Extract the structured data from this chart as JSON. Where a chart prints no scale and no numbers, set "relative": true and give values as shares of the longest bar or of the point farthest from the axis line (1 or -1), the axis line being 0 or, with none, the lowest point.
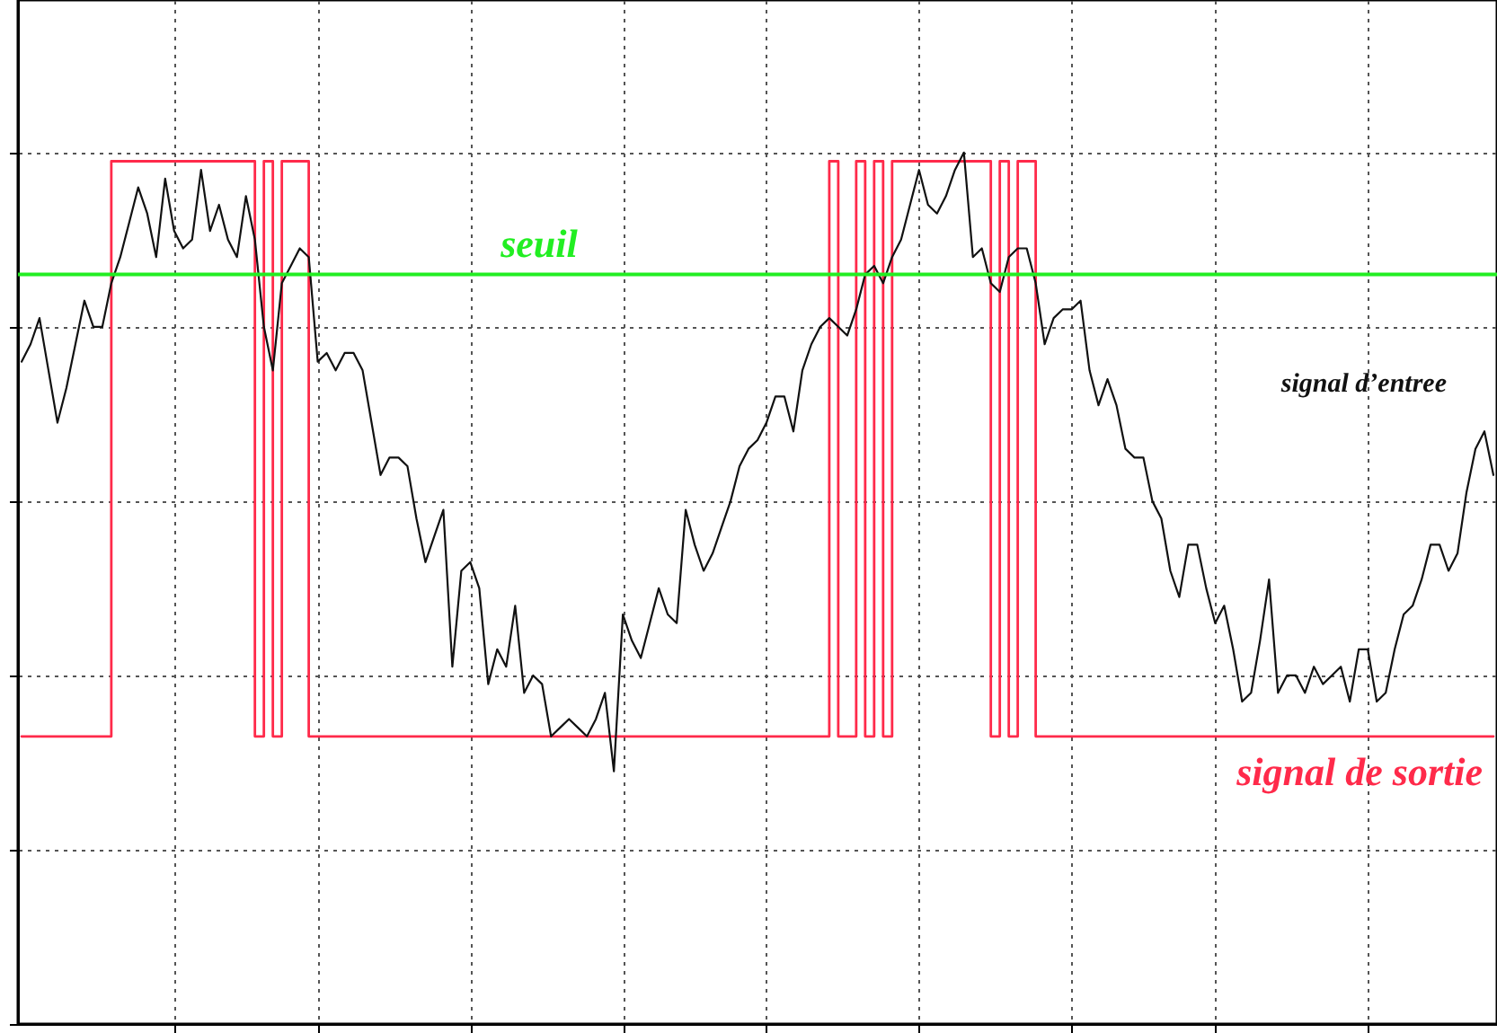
{
  "chart_data": {
    "type": "line",
    "relative": true,
    "grid": true,
    "categories": [
      null,
      null,
      null,
      null,
      null,
      null,
      null,
      null,
      null,
      null,
      null,
      null,
      null,
      null,
      null,
      null,
      null,
      null,
      null,
      null,
      null,
      null,
      null,
      null,
      null,
      null,
      null,
      null,
      null,
      null,
      null,
      null,
      null,
      null,
      null,
      null,
      null,
      null,
      null,
      null,
      null,
      null,
      null,
      null,
      null,
      null,
      null,
      null,
      null,
      null,
      null,
      null,
      null,
      null,
      null,
      null,
      null,
      null,
      null,
      null,
      null,
      null,
      null,
      null,
      null,
      null,
      null,
      null,
      null,
      null,
      null,
      null,
      null,
      null,
      null,
      null,
      null,
      null,
      null,
      null,
      null,
      null,
      null,
      null,
      null,
      null,
      null,
      null,
      null,
      null,
      null,
      null,
      null,
      null,
      null,
      null,
      null,
      null,
      null,
      null,
      null,
      null,
      null,
      null,
      null,
      null,
      null,
      null,
      null,
      null,
      null,
      null,
      null,
      null,
      null,
      null,
      null,
      null,
      null,
      null,
      null,
      null,
      null,
      null,
      null,
      null,
      null,
      null,
      null,
      null,
      null,
      null,
      null,
      null,
      null,
      null,
      null,
      null,
      null,
      null,
      null,
      null,
      null,
      null,
      null,
      null,
      null,
      null,
      null,
      null,
      null,
      null,
      null,
      null,
      null,
      null,
      null,
      null,
      null,
      null,
      null,
      null,
      null,
      null,
      null
    ],
    "ref_lines": [
      {
        "axis": "y",
        "value": 0.86,
        "label": "seuil",
        "color": "#22ee22"
      }
    ],
    "series": [
      {
        "name": "signal d’entree",
        "color": "#111111",
        "values": [
          0.76,
          0.78,
          0.81,
          0.75,
          0.69,
          0.73,
          0.78,
          0.83,
          0.8,
          0.8,
          0.85,
          0.88,
          0.92,
          0.96,
          0.93,
          0.88,
          0.97,
          0.91,
          0.89,
          0.9,
          0.98,
          0.91,
          0.94,
          0.9,
          0.88,
          0.95,
          0.9,
          0.8,
          0.75,
          0.85,
          0.87,
          0.89,
          0.88,
          0.76,
          0.77,
          0.75,
          0.77,
          0.77,
          0.75,
          0.69,
          0.63,
          0.65,
          0.65,
          0.64,
          0.58,
          0.53,
          0.56,
          0.59,
          0.41,
          0.52,
          0.53,
          0.5,
          0.39,
          0.43,
          0.41,
          0.48,
          0.38,
          0.4,
          0.39,
          0.33,
          0.34,
          0.35,
          0.34,
          0.33,
          0.35,
          0.38,
          0.29,
          0.47,
          0.44,
          0.42,
          0.46,
          0.5,
          0.47,
          0.46,
          0.59,
          0.55,
          0.52,
          0.54,
          0.57,
          0.6,
          0.64,
          0.66,
          0.67,
          0.69,
          0.72,
          0.72,
          0.68,
          0.75,
          0.78,
          0.8,
          0.81,
          0.8,
          0.79,
          0.82,
          0.86,
          0.87,
          0.85,
          0.88,
          0.9,
          0.94,
          0.98,
          0.94,
          0.93,
          0.95,
          0.98,
          1.0,
          0.88,
          0.89,
          0.85,
          0.84,
          0.88,
          0.89,
          0.89,
          0.85,
          0.78,
          0.81,
          0.82,
          0.82,
          0.83,
          0.75,
          0.71,
          0.74,
          0.71,
          0.66,
          0.65,
          0.65,
          0.6,
          0.58,
          0.52,
          0.49,
          0.55,
          0.55,
          0.5,
          0.46,
          0.48,
          0.43,
          0.37,
          0.38,
          0.44,
          0.51,
          0.38,
          0.4,
          0.4,
          0.38,
          0.41,
          0.39,
          0.4,
          0.41,
          0.37,
          0.43,
          0.43,
          0.37,
          0.38,
          0.43,
          0.47,
          0.48,
          0.51,
          0.55,
          0.55,
          0.52,
          0.54,
          0.61,
          0.66,
          0.68,
          0.63
        ]
      },
      {
        "name": "signal de sortie",
        "color": "#ff2a4a",
        "type": "step",
        "values": [
          0.33,
          0.33,
          0.33,
          0.33,
          0.33,
          0.33,
          0.33,
          0.33,
          0.33,
          0.33,
          0.99,
          0.99,
          0.99,
          0.99,
          0.99,
          0.99,
          0.99,
          0.99,
          0.99,
          0.99,
          0.99,
          0.99,
          0.99,
          0.99,
          0.99,
          0.99,
          0.33,
          0.99,
          0.33,
          0.99,
          0.99,
          0.99,
          0.33,
          0.33,
          0.33,
          0.33,
          0.33,
          0.33,
          0.33,
          0.33,
          0.33,
          0.33,
          0.33,
          0.33,
          0.33,
          0.33,
          0.33,
          0.33,
          0.33,
          0.33,
          0.33,
          0.33,
          0.33,
          0.33,
          0.33,
          0.33,
          0.33,
          0.33,
          0.33,
          0.33,
          0.33,
          0.33,
          0.33,
          0.33,
          0.33,
          0.33,
          0.33,
          0.33,
          0.33,
          0.33,
          0.33,
          0.33,
          0.33,
          0.33,
          0.33,
          0.33,
          0.33,
          0.33,
          0.33,
          0.33,
          0.33,
          0.33,
          0.33,
          0.33,
          0.33,
          0.33,
          0.33,
          0.33,
          0.33,
          0.33,
          0.99,
          0.33,
          0.33,
          0.99,
          0.33,
          0.99,
          0.33,
          0.99,
          0.99,
          0.99,
          0.99,
          0.99,
          0.99,
          0.99,
          0.99,
          0.99,
          0.99,
          0.99,
          0.33,
          0.99,
          0.33,
          0.99,
          0.99,
          0.33,
          0.33,
          0.33,
          0.33,
          0.33,
          0.33,
          0.33,
          0.33,
          0.33,
          0.33,
          0.33,
          0.33,
          0.33,
          0.33,
          0.33,
          0.33,
          0.33,
          0.33,
          0.33,
          0.33,
          0.33,
          0.33,
          0.33,
          0.33,
          0.33,
          0.33,
          0.33,
          0.33,
          0.33,
          0.33,
          0.33,
          0.33,
          0.33,
          0.33,
          0.33,
          0.33,
          0.33,
          0.33,
          0.33,
          0.33,
          0.33,
          0.33,
          0.33,
          0.33,
          0.33,
          0.33,
          0.33,
          0.33,
          0.33,
          0.33,
          0.33,
          0.33
        ]
      }
    ]
  }
}
